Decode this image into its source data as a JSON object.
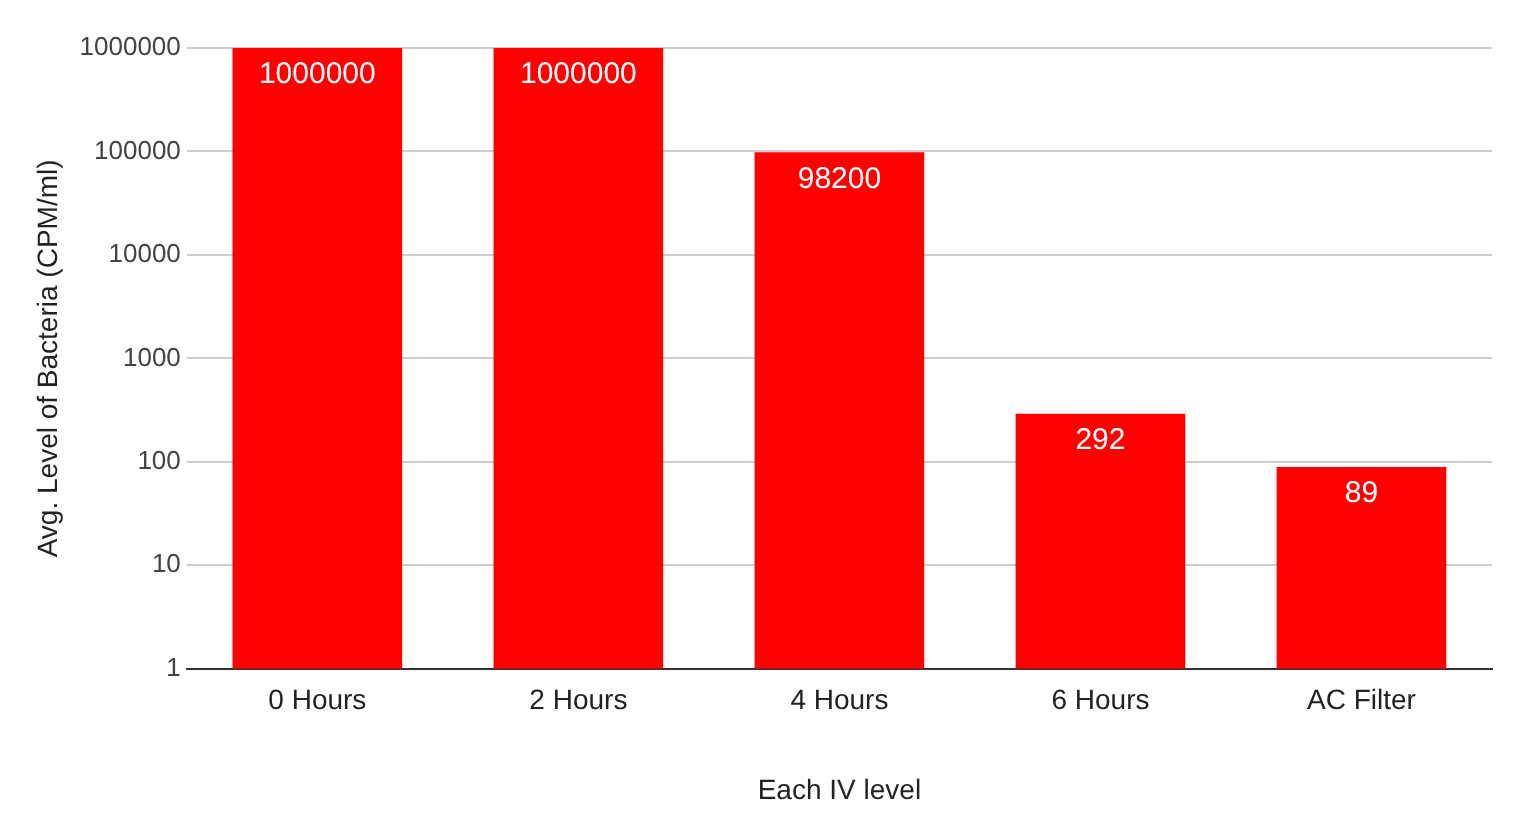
{
  "chart_data": {
    "type": "bar",
    "xlabel": "Each IV level",
    "ylabel": "Avg. Level of Bacteria (CPM/ml)",
    "categories": [
      "0 Hours",
      "2 Hours",
      "4 Hours",
      "6 Hours",
      "AC Filter"
    ],
    "values": [
      1000000,
      1000000,
      98200,
      292,
      89
    ],
    "color": "#ff0000",
    "log": true,
    "ylim": [
      1,
      1000000
    ],
    "yticks": [
      1,
      10,
      100,
      1000,
      10000,
      100000,
      1000000
    ],
    "grid": "y",
    "legend": false,
    "data_labels": true
  }
}
